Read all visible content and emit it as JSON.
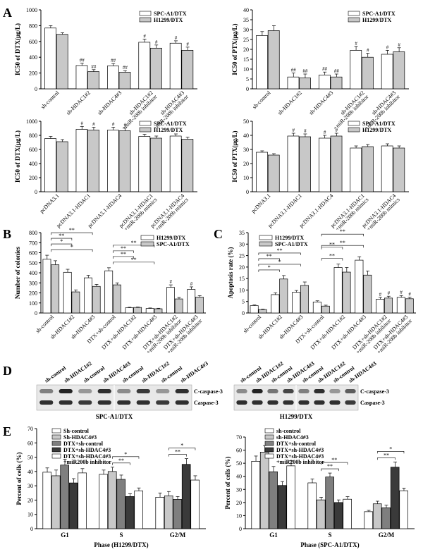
{
  "colors": {
    "white_bar": "#ffffff",
    "light_bar": "#c8c8c8",
    "mid_bar": "#7f7f7f",
    "dark_bar": "#3a3a3a",
    "stroke": "#000000"
  },
  "panel_labels": [
    "A",
    "B",
    "C",
    "D",
    "E"
  ],
  "chart_data": [
    {
      "id": "A1",
      "type": "bar",
      "panel": "A",
      "ylabel": "IC50 of DTX(μg/L)",
      "ylim": [
        0,
        1000
      ],
      "yticks": [
        0,
        200,
        400,
        600,
        800,
        1000
      ],
      "categories": [
        "sh-control",
        "sh-HDAC1#2",
        "sh-HDAC4#3",
        "sh-HDAC1#2\n+miR-200b inhibitor",
        "sh-HDAC4#3\n+miR-200b inhibitor"
      ],
      "series": [
        {
          "name": "SPC-A1/DTX",
          "values": [
            770,
            295,
            290,
            590,
            578
          ],
          "errors": [
            30,
            30,
            30,
            40,
            30
          ],
          "marks": [
            "",
            "##",
            "##",
            "#",
            "#"
          ]
        },
        {
          "name": "H1299/DTX",
          "values": [
            690,
            218,
            210,
            515,
            488
          ],
          "errors": [
            20,
            25,
            20,
            40,
            40
          ],
          "marks": [
            "",
            "##",
            "##",
            "#",
            "#"
          ]
        }
      ],
      "legend": "top-right"
    },
    {
      "id": "A2",
      "type": "bar",
      "panel": "A",
      "ylabel": "IC50 of PTX(μg/L)",
      "ylim": [
        0,
        40
      ],
      "yticks": [
        0,
        5,
        10,
        15,
        20,
        25,
        30,
        35,
        40
      ],
      "categories": [
        "sh-control",
        "sh-HDAC1#2",
        "sh-HDAC4#3",
        "sh-HDAC1#2\n+miR-200b inhibitor",
        "sh-HDAC4#3\n+miR-200b inhibitor"
      ],
      "series": [
        {
          "name": "SPC-A1/DTX",
          "values": [
            27,
            6,
            7,
            19.5,
            17.5
          ],
          "errors": [
            2,
            2,
            1.5,
            2,
            2
          ],
          "marks": [
            "",
            "##",
            "##",
            "#",
            "#"
          ]
        },
        {
          "name": "H1299/DTX",
          "values": [
            29.5,
            5.5,
            6,
            16,
            18.8
          ],
          "errors": [
            2.5,
            2,
            1.5,
            2,
            2
          ],
          "marks": [
            "",
            "##",
            "##",
            "#",
            "#"
          ]
        }
      ],
      "legend": "top-right"
    },
    {
      "id": "A3",
      "type": "bar",
      "panel": "A",
      "ylabel": "IC50 of DTX(μg/L)",
      "ylim": [
        0,
        1000
      ],
      "yticks": [
        0,
        200,
        400,
        600,
        800,
        1000
      ],
      "categories": [
        "pcDNA3.1",
        "pcDNA3.1-HDAC1",
        "pcDNA3.1-HDAC4",
        "pcDNA3.1-HDAC1\n+miR-200b mimics",
        "pcDNA3.1-HDAC4\n+miR-200b mimics"
      ],
      "series": [
        {
          "name": "SPC-A1/DTX",
          "values": [
            755,
            885,
            875,
            785,
            790
          ],
          "errors": [
            30,
            40,
            40,
            30,
            30
          ],
          "marks": [
            "",
            "#",
            "#",
            "",
            ""
          ]
        },
        {
          "name": "H1299/DTX",
          "values": [
            710,
            875,
            865,
            760,
            745
          ],
          "errors": [
            30,
            40,
            40,
            30,
            30
          ],
          "marks": [
            "",
            "#",
            "#",
            "",
            ""
          ]
        }
      ],
      "legend": "top-right"
    },
    {
      "id": "A4",
      "type": "bar",
      "panel": "A",
      "ylabel": "IC50 of PTX(μg/L)",
      "ylim": [
        0,
        50
      ],
      "yticks": [
        0,
        10,
        20,
        30,
        40,
        50
      ],
      "categories": [
        "pcDNA3.1",
        "pcDNA3.1-HDAC1",
        "pcDNA3.1-HDAC4",
        "pcDNA3.1-HDAC1\n+miR-200b mimics",
        "pcDNA3.1-HDAC4\n+miR-200b mimics"
      ],
      "series": [
        {
          "name": "SPC-A1/DTX",
          "values": [
            28,
            39.5,
            38,
            31,
            32.5
          ],
          "errors": [
            1,
            2,
            2,
            1.5,
            1.5
          ],
          "marks": [
            "",
            "#",
            "#",
            "",
            ""
          ]
        },
        {
          "name": "H1299/DTX",
          "values": [
            26,
            39,
            39.5,
            32,
            31
          ],
          "errors": [
            1,
            2,
            2,
            1.5,
            1.5
          ],
          "marks": [
            "",
            "#",
            "#",
            "",
            ""
          ]
        }
      ],
      "legend": "top-right"
    },
    {
      "id": "B",
      "type": "bar",
      "panel": "B",
      "ylabel": "Number of colonies",
      "ylim": [
        0,
        800
      ],
      "yticks": [
        0,
        100,
        200,
        300,
        400,
        500,
        600,
        700,
        800
      ],
      "categories": [
        "sh-control",
        "sh-HDAC1#2",
        "sh-HDAC4#3",
        "DTX+sh-control",
        "DTX+sh-HDAC1#2",
        "DTX+sh-HDAC4#3",
        "DTX+sh-HDAC1#2\n+miR-200b inhibitor",
        "DTX+sh-HDAC4#3\n+miR-200b inhibitor"
      ],
      "series": [
        {
          "name": "H1299/DTX",
          "values": [
            535,
            405,
            350,
            420,
            52,
            45,
            255,
            235
          ],
          "errors": [
            40,
            30,
            25,
            30,
            5,
            5,
            25,
            25
          ],
          "marks": [
            "",
            "",
            "",
            "",
            "",
            "",
            "#",
            "#"
          ]
        },
        {
          "name": "SPC-A1/DTX",
          "values": [
            480,
            210,
            265,
            280,
            55,
            42,
            140,
            158
          ],
          "errors": [
            40,
            20,
            20,
            20,
            5,
            5,
            15,
            15
          ],
          "marks": [
            "",
            "",
            "",
            "",
            "",
            "",
            "",
            ""
          ]
        }
      ],
      "brackets": [
        {
          "from": 0,
          "to": 2,
          "level": 0,
          "text": "*"
        },
        {
          "from": 0,
          "to": 1,
          "level": 1,
          "text": "*"
        },
        {
          "from": 0,
          "to": 1,
          "level": 2,
          "text": "**"
        },
        {
          "from": 0,
          "to": 2,
          "level": 3,
          "text": "**"
        },
        {
          "from": 3,
          "to": 5,
          "level": 0,
          "text": "**"
        },
        {
          "from": 3,
          "to": 4,
          "level": 1,
          "text": "**"
        },
        {
          "from": 3,
          "to": 4,
          "level": 2,
          "text": "**"
        },
        {
          "from": 3,
          "to": 5,
          "level": 3,
          "text": "**"
        }
      ],
      "legend": "top-right"
    },
    {
      "id": "C",
      "type": "bar",
      "panel": "C",
      "ylabel": "Apoptosis rate (%)",
      "ylim": [
        0,
        35
      ],
      "yticks": [
        0,
        5,
        10,
        15,
        20,
        25,
        30,
        35
      ],
      "categories": [
        "sh-control",
        "sh-HDAC1#2",
        "sh-HDAC4#3",
        "DTX+sh-control",
        "DTX+sh-HDAC1#2",
        "DTX+sh-HDAC4#3",
        "DTX+sh-HDAC1#2\n+miR-200b inhibitor",
        "DTX+sh-HDAC4#3\n+miR-200b inhibitor"
      ],
      "series": [
        {
          "name": "H1299/DTX",
          "values": [
            3.2,
            8.0,
            9.0,
            4.8,
            19.8,
            23.0,
            6.0,
            6.8
          ],
          "errors": [
            0.3,
            0.8,
            0.8,
            0.5,
            1.5,
            1.5,
            0.8,
            0.8
          ],
          "marks": [
            "",
            "",
            "",
            "",
            "",
            "",
            "#",
            "#"
          ]
        },
        {
          "name": "SPC-A1/DTX",
          "values": [
            1.5,
            14.8,
            12.0,
            3.0,
            17.8,
            16.5,
            6.5,
            6.2
          ],
          "errors": [
            0.2,
            1.5,
            1.5,
            0.4,
            2.0,
            1.8,
            0.8,
            0.7
          ],
          "marks": [
            "",
            "",
            "",
            "",
            "",
            "",
            "#",
            "#"
          ]
        }
      ],
      "brackets": [
        {
          "from": 0,
          "to": 1,
          "level": 0,
          "text": "*"
        },
        {
          "from": 0,
          "to": 2,
          "level": 1,
          "text": "*"
        },
        {
          "from": 0,
          "to": 1,
          "level": 2,
          "text": "**"
        },
        {
          "from": 0,
          "to": 2,
          "level": 3,
          "text": "**"
        },
        {
          "from": 3,
          "to": 4,
          "level": 0,
          "text": "**"
        },
        {
          "from": 3,
          "to": 5,
          "level": 1,
          "text": "**"
        },
        {
          "from": 3,
          "to": 4,
          "level": 2,
          "text": "**"
        },
        {
          "from": 3,
          "to": 5,
          "level": 3,
          "text": "**"
        }
      ],
      "legend": "top-left"
    },
    {
      "id": "E1",
      "type": "bar",
      "panel": "E",
      "ylabel": "Percent of cells (%)",
      "xlabel": "Phase (H1299/DTX)",
      "ylim": [
        0,
        70
      ],
      "yticks": [
        0,
        10,
        20,
        30,
        40,
        50,
        60,
        70
      ],
      "categories": [
        "G1",
        "S",
        "G2/M"
      ],
      "series": [
        {
          "name": "Sh-control",
          "values": [
            39.5,
            38,
            22
          ],
          "errors": [
            3,
            3,
            3
          ]
        },
        {
          "name": "Sh-HDAC4#3",
          "values": [
            37,
            40,
            23
          ],
          "errors": [
            4,
            3,
            3
          ]
        },
        {
          "name": "DTX+sh-control",
          "values": [
            44.5,
            34.5,
            20.5
          ],
          "errors": [
            4,
            3,
            2
          ]
        },
        {
          "name": "DTX+sh-HDAC4#3",
          "values": [
            32,
            22.5,
            45
          ],
          "errors": [
            3,
            2,
            4
          ]
        },
        {
          "name": "DTX+sh-HDAC4#3\n+miR200b inhibitor",
          "values": [
            39,
            26.5,
            34
          ],
          "errors": [
            3,
            2,
            3
          ]
        }
      ],
      "brackets": [
        {
          "group": 1,
          "from": 1,
          "to": 3,
          "level": 0,
          "text": "**"
        },
        {
          "group": 1,
          "from": 1,
          "to": 4,
          "level": 1,
          "text": "*"
        },
        {
          "group": 2,
          "from": 1,
          "to": 3,
          "level": 0,
          "text": "**"
        },
        {
          "group": 2,
          "from": 1,
          "to": 4,
          "level": 1,
          "text": "*"
        }
      ],
      "legend": "top-left"
    },
    {
      "id": "E2",
      "type": "bar",
      "panel": "E",
      "ylabel": "Percent of cells (%)",
      "xlabel": "Phase (SPC-A1/DTX)",
      "ylim": [
        0,
        70
      ],
      "yticks": [
        0,
        10,
        20,
        30,
        40,
        50,
        60,
        70
      ],
      "categories": [
        "G1",
        "S",
        "G2/M"
      ],
      "series": [
        {
          "name": "sh-control",
          "values": [
            51.5,
            35,
            13
          ],
          "errors": [
            4,
            3,
            1
          ]
        },
        {
          "name": "sh-HDAC4#3",
          "values": [
            58.5,
            22,
            19
          ],
          "errors": [
            5,
            2,
            2
          ]
        },
        {
          "name": "DTX+sh-control",
          "values": [
            43.5,
            39.5,
            16
          ],
          "errors": [
            4,
            3,
            2
          ]
        },
        {
          "name": "DTX+sh-HDAC4#3",
          "values": [
            33,
            20,
            47
          ],
          "errors": [
            3,
            2,
            4
          ]
        },
        {
          "name": "DTX+sh-HDAC4#3\n+miR200b inhibitor",
          "values": [
            48,
            22.5,
            29
          ],
          "errors": [
            4,
            2,
            2
          ]
        }
      ],
      "brackets": [
        {
          "group": 1,
          "from": 1,
          "to": 3,
          "level": 0,
          "text": "**"
        },
        {
          "group": 1,
          "from": 1,
          "to": 4,
          "level": 1,
          "text": "**"
        },
        {
          "group": 2,
          "from": 1,
          "to": 3,
          "level": 0,
          "text": "**"
        },
        {
          "group": 2,
          "from": 1,
          "to": 4,
          "level": 1,
          "text": "*"
        }
      ],
      "legend": "top-right"
    }
  ],
  "western": {
    "lanes": [
      "sh-control",
      "sh-HDAC1#2",
      "sh-control",
      "sh-HDAC4#3"
    ],
    "lanes_repeat": [
      "sh-control",
      "sh-HDAC1#2",
      "sh-control",
      "sh-HDAC4#3"
    ],
    "bands": [
      "C-caspase-3",
      "Caspase-3"
    ],
    "blots": [
      {
        "caption": "SPC-A1/DTX",
        "c_intensity": [
          0.45,
          0.85,
          0.35,
          0.8,
          0.4,
          0.75,
          0.35,
          0.8
        ],
        "total_intensity": [
          0.8,
          0.8,
          0.75,
          0.8,
          0.8,
          0.8,
          0.75,
          0.8
        ]
      },
      {
        "caption": "H1299/DTX",
        "c_intensity": [
          0.4,
          0.85,
          0.5,
          0.7,
          0.45,
          0.8,
          0.35,
          0.6
        ],
        "total_intensity": [
          0.8,
          0.8,
          0.8,
          0.8,
          0.8,
          0.8,
          0.8,
          0.75
        ]
      }
    ]
  }
}
